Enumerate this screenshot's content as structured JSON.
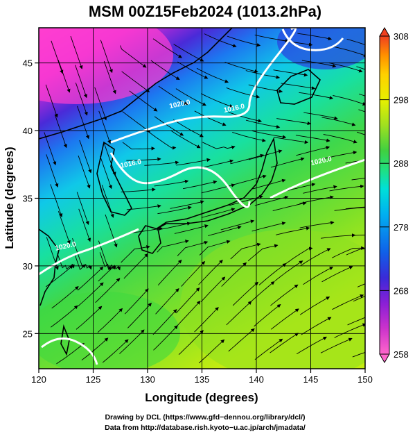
{
  "title": "MSM 00Z15Feb2024 (1013.2hPa)",
  "xlabel": "Longitude (degrees)",
  "ylabel": "Latitude  (degrees)",
  "xticks": [
    120,
    125,
    130,
    135,
    140,
    145,
    150
  ],
  "yticks": [
    25,
    30,
    35,
    40,
    45
  ],
  "xlim": [
    120,
    150
  ],
  "ylim": [
    22.4,
    47.6
  ],
  "colorbar": {
    "ticks": [
      258,
      268,
      278,
      288,
      298,
      308
    ],
    "range": [
      258,
      308
    ],
    "colors": [
      "#ff66cc",
      "#cc33cc",
      "#8a1fd6",
      "#3a2ad8",
      "#1060e8",
      "#00b0f0",
      "#00e0d8",
      "#20e080",
      "#40d040",
      "#a0e020",
      "#e8f000",
      "#ffd000",
      "#ff9000",
      "#f04020"
    ]
  },
  "contours": [
    {
      "label": "1020.0",
      "lon": 133,
      "lat": 41.8
    },
    {
      "label": "1016.0",
      "lon": 138,
      "lat": 41.5
    },
    {
      "label": "1016.0",
      "lon": 128.5,
      "lat": 37.4
    },
    {
      "label": "1020.0",
      "lon": 146,
      "lat": 37.6
    },
    {
      "label": "1020.0",
      "lon": 122.5,
      "lat": 31.3
    }
  ],
  "credits": {
    "line1": "Drawing by DCL (https://www.gfd−dennou.org/library/dcl/)",
    "line2": "Data from http://database.rish.kyoto−u.ac.jp/arch/jmadata/"
  }
}
